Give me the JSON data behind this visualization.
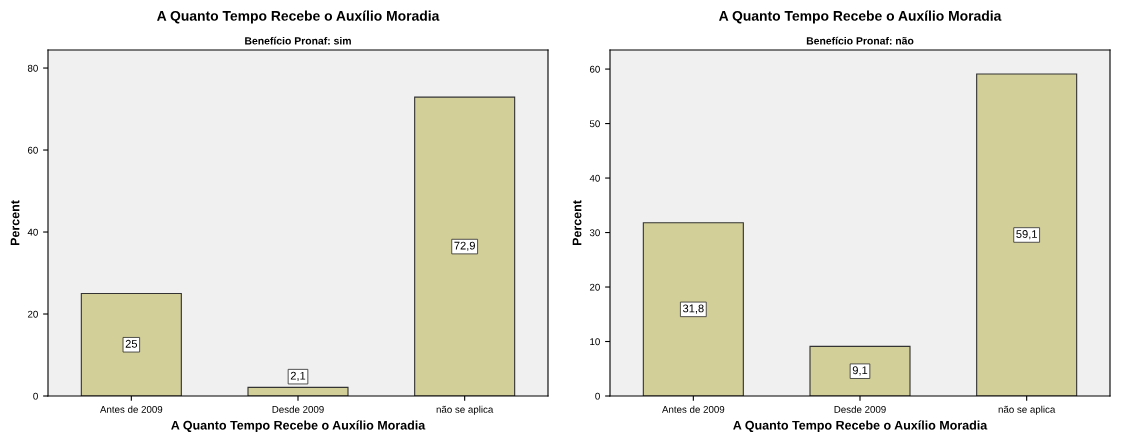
{
  "chart_data": [
    {
      "type": "bar",
      "title": "A Quanto Tempo Recebe o Auxílio Moradia",
      "subtitle": "Benefício Pronaf: sim",
      "xlabel": "A Quanto Tempo Recebe o Auxílio Moradia",
      "ylabel": "Percent",
      "categories": [
        "Antes de 2009",
        "Desde 2009",
        "não se aplica"
      ],
      "values": [
        25,
        2.1,
        72.9
      ],
      "value_labels": [
        "25",
        "2,1",
        "72,9"
      ],
      "color": "#d3cf98",
      "ylim": [
        0,
        84.4
      ],
      "yticks": [
        0,
        20,
        40,
        60,
        80
      ],
      "grid": false
    },
    {
      "type": "bar",
      "title": "A Quanto Tempo Recebe o Auxílio Moradia",
      "subtitle": "Benefício Pronaf: não",
      "xlabel": "A Quanto Tempo Recebe o Auxílio Moradia",
      "ylabel": "Percent",
      "categories": [
        "Antes de 2009",
        "Desde 2009",
        "não se aplica"
      ],
      "values": [
        31.8,
        9.1,
        59.1
      ],
      "value_labels": [
        "31,8",
        "9,1",
        "59,1"
      ],
      "color": "#d3cf98",
      "ylim": [
        0,
        63.5
      ],
      "yticks": [
        0,
        10,
        20,
        30,
        40,
        50,
        60
      ],
      "grid": false
    }
  ]
}
